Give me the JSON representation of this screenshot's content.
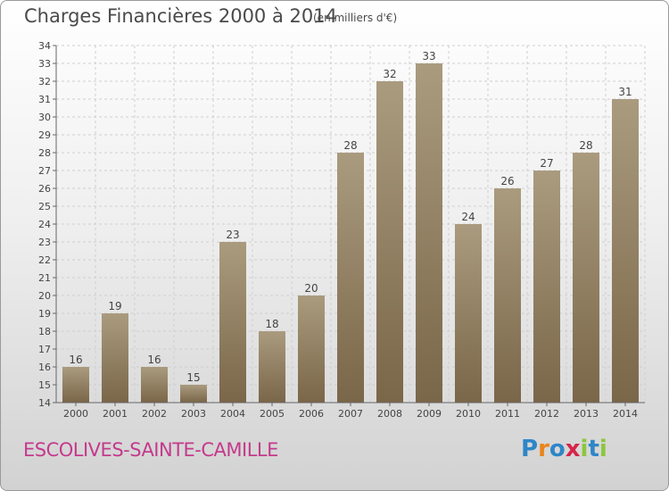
{
  "title": "Charges Financières 2000 à 2014",
  "unit_note": "(en milliers d'€)",
  "commune": "ESCOLIVES-SAINTE-CAMILLE",
  "brand": {
    "letters": [
      "P",
      "r",
      "o",
      "x",
      "i",
      "t",
      "i"
    ],
    "colors": [
      "#2e86c7",
      "#e9851d",
      "#2e86c7",
      "#d6244a",
      "#8cc63e",
      "#2e86c7",
      "#8cc63e"
    ]
  },
  "colors": {
    "bar_top": "#aa9b7f",
    "bar_bottom": "#7a6648",
    "grid": "#cfcfcf",
    "text": "#444444"
  },
  "chart_data": {
    "type": "bar",
    "categories": [
      "2000",
      "2001",
      "2002",
      "2003",
      "2004",
      "2005",
      "2006",
      "2007",
      "2008",
      "2009",
      "2010",
      "2011",
      "2012",
      "2013",
      "2014"
    ],
    "values": [
      16,
      19,
      16,
      15,
      23,
      18,
      20,
      28,
      32,
      33,
      24,
      26,
      27,
      28,
      31
    ],
    "ylim": [
      14,
      34
    ],
    "yticks": [
      14,
      15,
      16,
      17,
      18,
      19,
      20,
      21,
      22,
      23,
      24,
      25,
      26,
      27,
      28,
      29,
      30,
      31,
      32,
      33,
      34
    ],
    "grid": true,
    "data_labels": true
  }
}
